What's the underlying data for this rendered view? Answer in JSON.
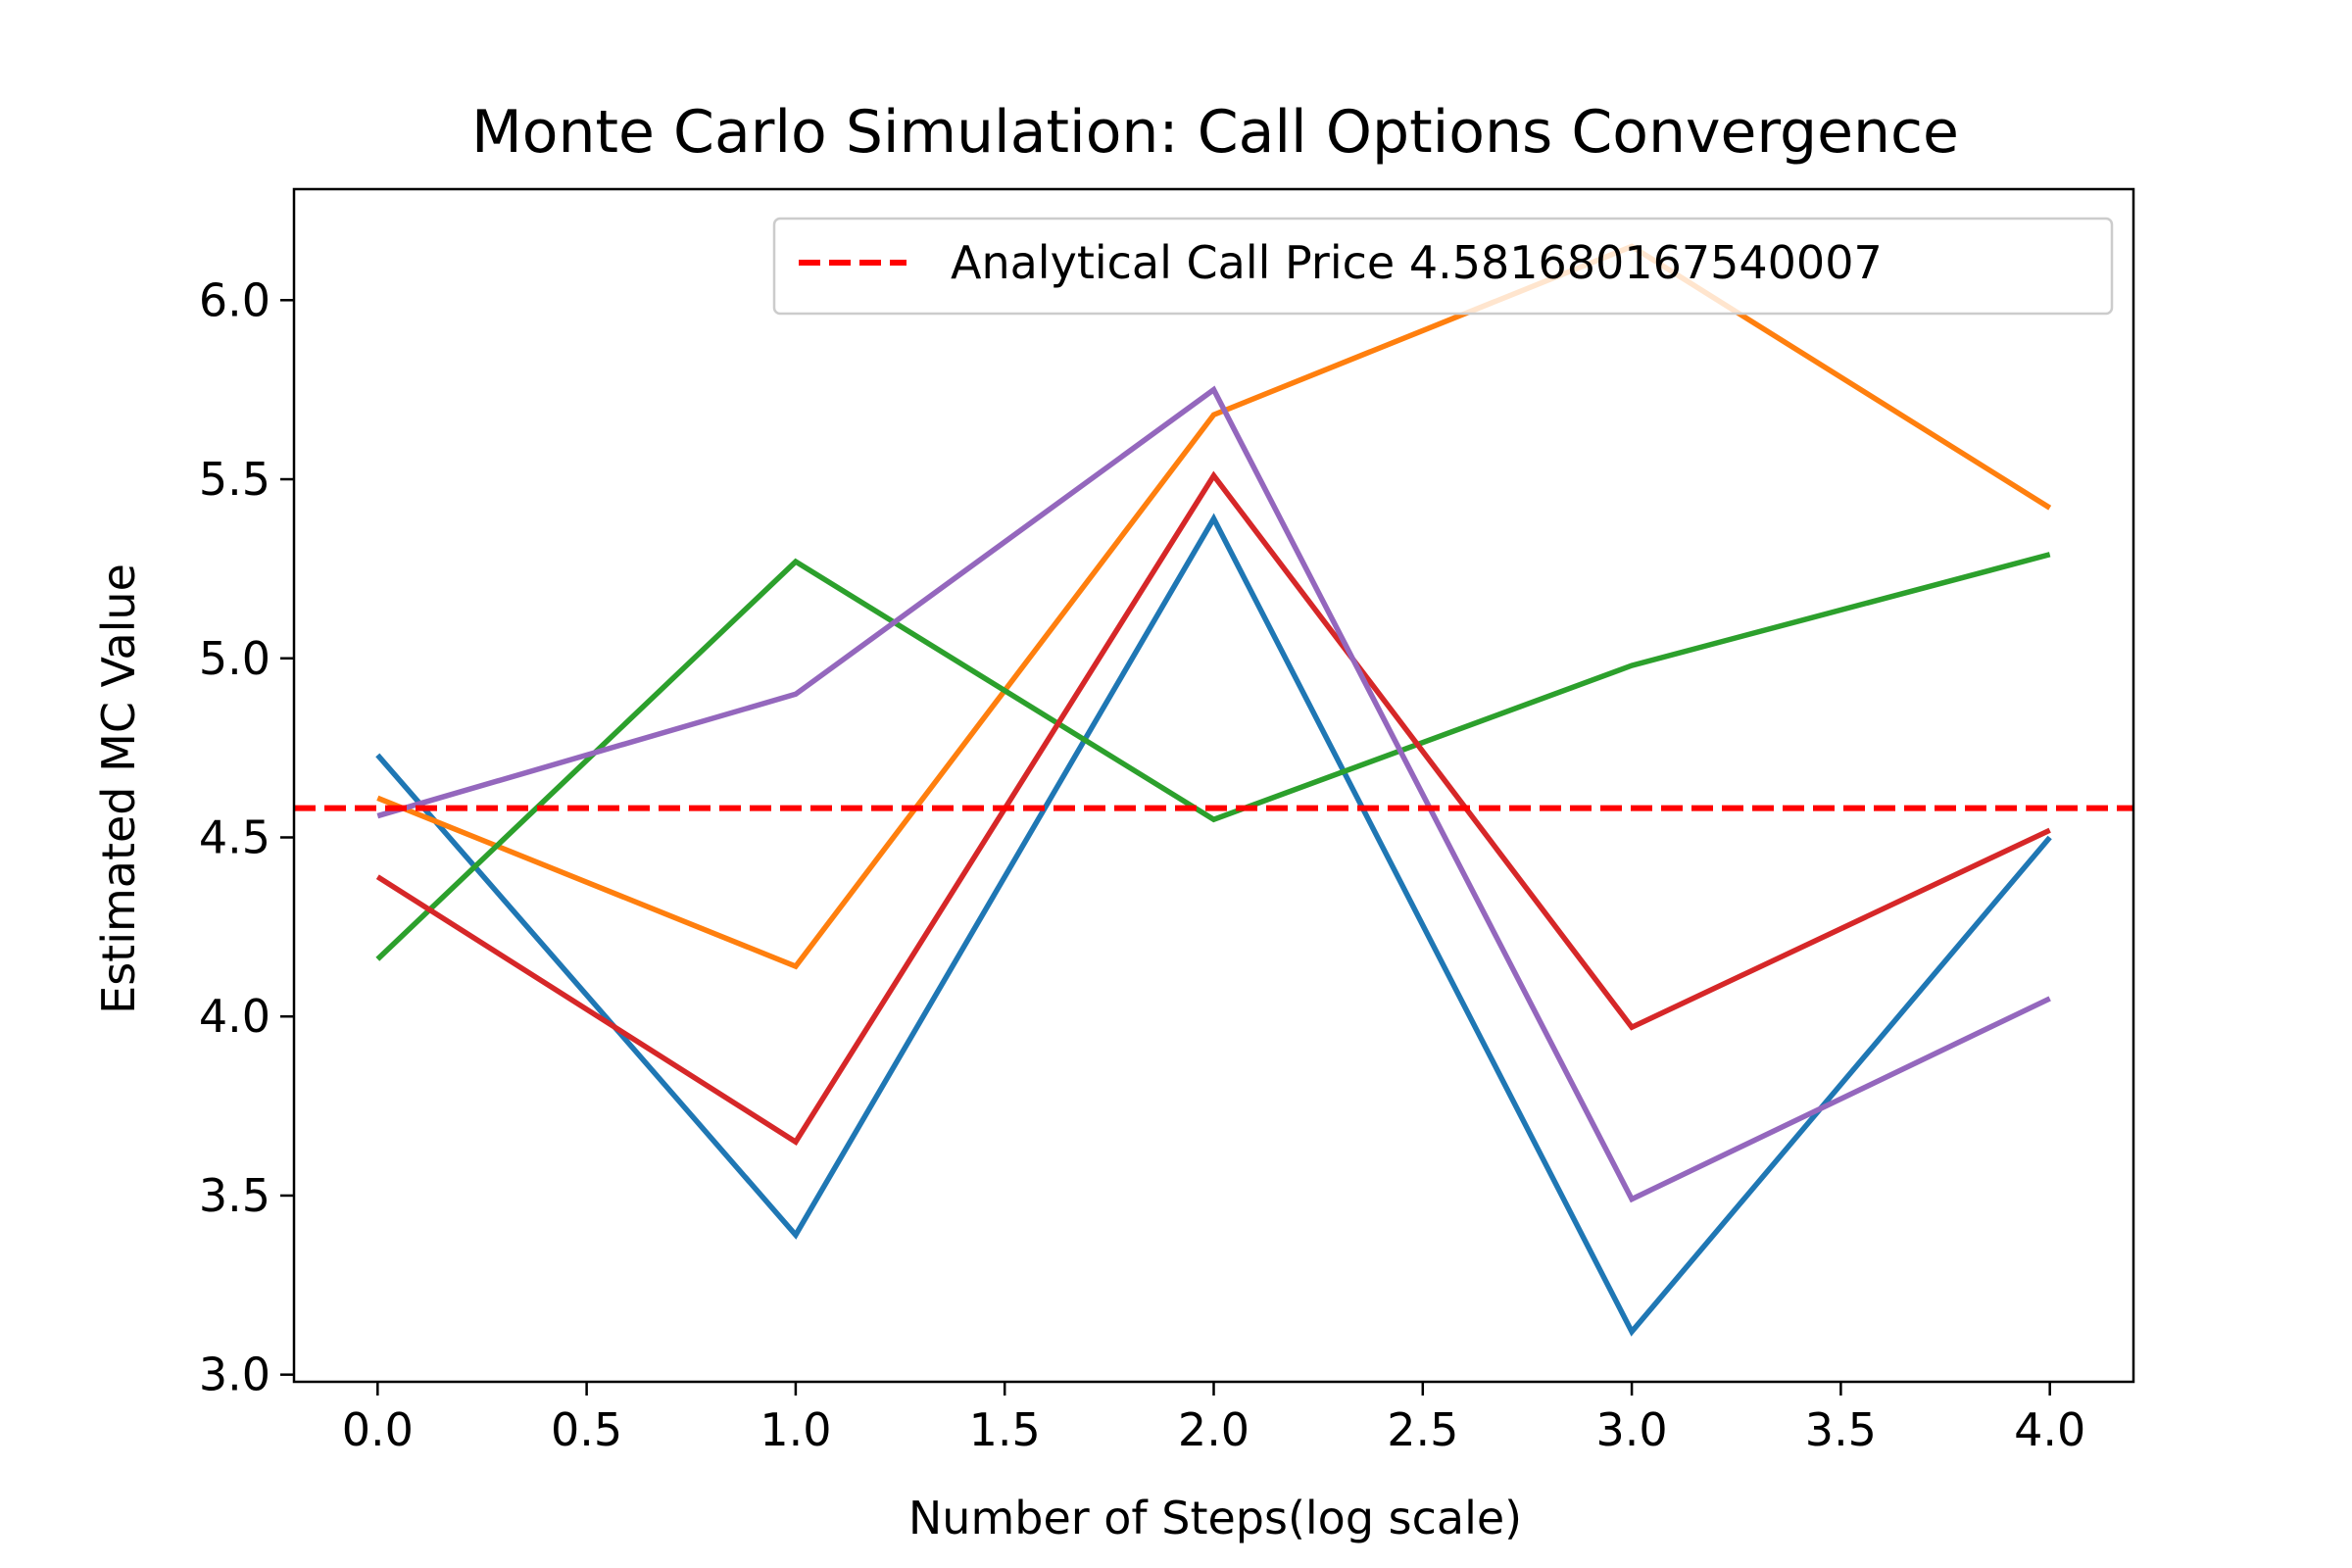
{
  "chart_data": {
    "type": "line",
    "title": "Monte Carlo Simulation: Call Options Convergence",
    "xlabel": "Number of Steps(log scale)",
    "ylabel": "Estimated MC Value",
    "x": [
      0,
      1,
      2,
      3,
      4
    ],
    "xlim": [
      -0.2,
      4.2
    ],
    "ylim": [
      2.98,
      6.31
    ],
    "xticks": [
      "0.0",
      "0.5",
      "1.0",
      "1.5",
      "2.0",
      "2.5",
      "3.0",
      "3.5",
      "4.0"
    ],
    "yticks": [
      "3.0",
      "3.5",
      "4.0",
      "4.5",
      "5.0",
      "5.5",
      "6.0"
    ],
    "grid": false,
    "legend_position": "top-right",
    "series": [
      {
        "color": "#1f77b4",
        "values": [
          4.73,
          3.39,
          5.39,
          3.12,
          4.5
        ]
      },
      {
        "color": "#ff7f0e",
        "values": [
          4.61,
          4.14,
          5.68,
          6.15,
          5.42
        ]
      },
      {
        "color": "#2ca02c",
        "values": [
          4.16,
          5.27,
          4.55,
          4.98,
          5.29
        ]
      },
      {
        "color": "#d62728",
        "values": [
          4.39,
          3.65,
          5.51,
          3.97,
          4.52
        ]
      },
      {
        "color": "#9467bd",
        "values": [
          4.56,
          4.9,
          5.75,
          3.49,
          4.05
        ]
      }
    ],
    "reference_line": {
      "label": "Analytical Call Price 4.581680167540007",
      "value": 4.581680167540007,
      "color": "#ff0000",
      "style": "dashed"
    }
  }
}
